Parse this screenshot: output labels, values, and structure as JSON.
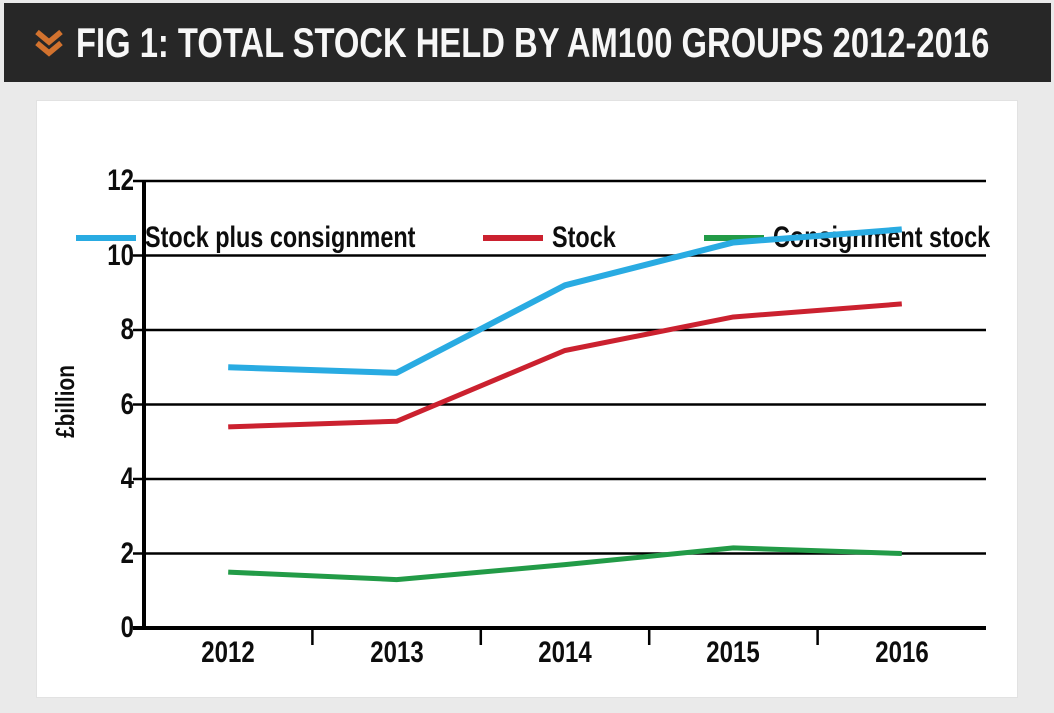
{
  "header": {
    "title": "FIG 1: TOTAL STOCK HELD BY AM100 GROUPS 2012-2016",
    "chevron_icon": "double-chevron-down",
    "bg_color": "#272727",
    "accent_color": "#d2722e"
  },
  "chart_data": {
    "type": "line",
    "title": "FIG 1: TOTAL STOCK HELD BY AM100 GROUPS 2012-2016",
    "xlabel": "",
    "ylabel": "£billion",
    "categories": [
      "2012",
      "2013",
      "2014",
      "2015",
      "2016"
    ],
    "series": [
      {
        "name": "Stock plus consignment",
        "color": "#29abe2",
        "values": [
          7.0,
          6.85,
          9.2,
          10.35,
          10.7
        ]
      },
      {
        "name": "Stock",
        "color": "#cb212f",
        "values": [
          5.4,
          5.55,
          7.45,
          8.35,
          8.7
        ]
      },
      {
        "name": "Consignment stock",
        "color": "#229b47",
        "values": [
          1.5,
          1.3,
          1.7,
          2.15,
          2.0
        ]
      }
    ],
    "ylim": [
      0,
      12
    ],
    "y_ticks": [
      12,
      10,
      8,
      6,
      4,
      2,
      0
    ],
    "grid": "horizontal",
    "grid_color": "#000000",
    "legend_position": "top"
  }
}
